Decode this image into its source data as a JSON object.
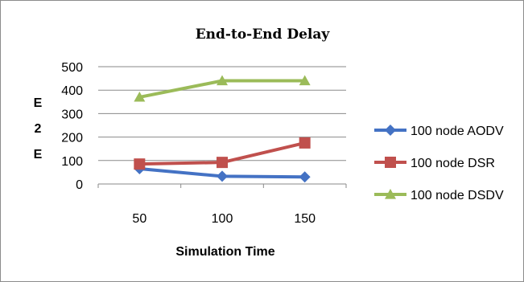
{
  "chart_data": {
    "type": "line",
    "title": "End-to-End Delay",
    "xlabel": "Simulation Time",
    "ylabel": "E 2 E",
    "ylabel_chars": [
      "E",
      "2",
      "E"
    ],
    "categories": [
      "50",
      "100",
      "150"
    ],
    "y_ticks": [
      "0",
      "100",
      "200",
      "300",
      "400",
      "500"
    ],
    "ylim": [
      0,
      500
    ],
    "grid": true,
    "legend_position": "right",
    "series": [
      {
        "name": "100 node AODV",
        "values": [
          65,
          33,
          30
        ],
        "color": "#4472C4",
        "marker": "diamond"
      },
      {
        "name": "100 node DSR",
        "values": [
          85,
          92,
          175
        ],
        "color": "#C0504D",
        "marker": "square"
      },
      {
        "name": "100 node DSDV",
        "values": [
          370,
          440,
          440
        ],
        "color": "#9BBB59",
        "marker": "triangle"
      }
    ]
  }
}
